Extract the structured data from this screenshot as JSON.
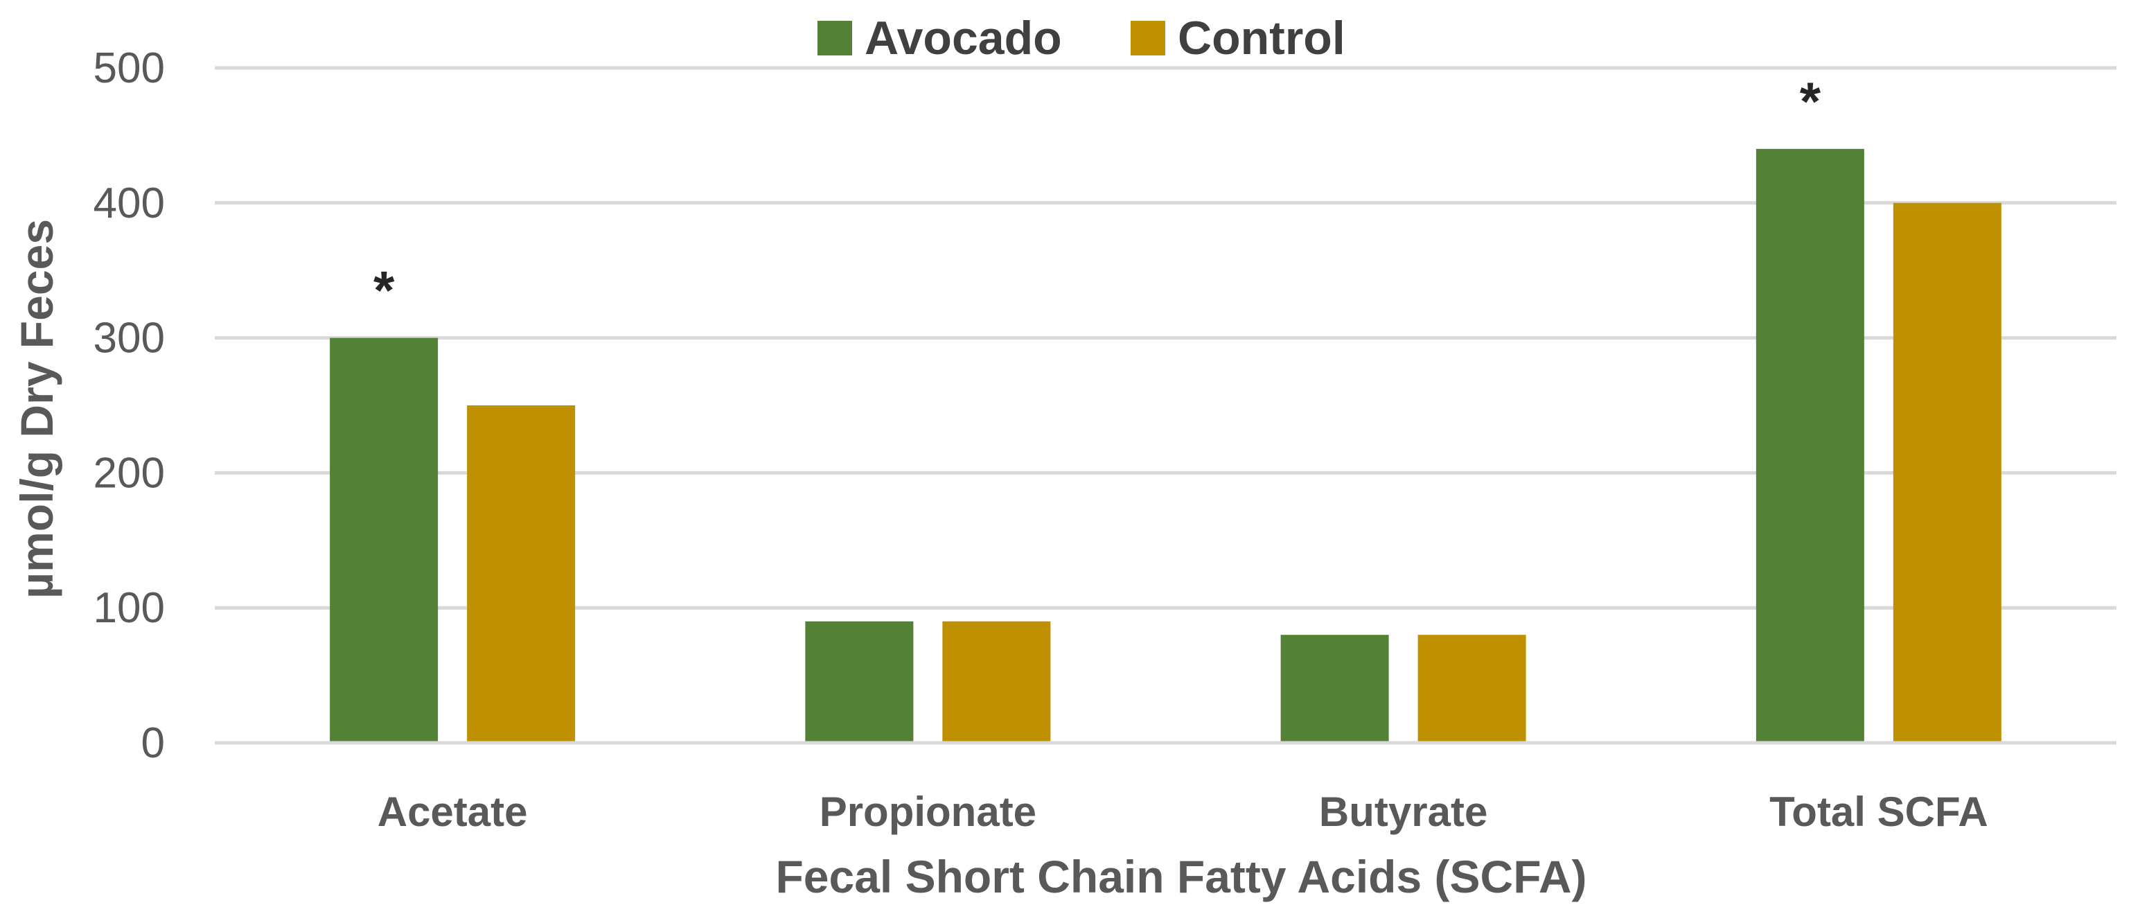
{
  "chart_data": {
    "type": "bar",
    "title": "",
    "xlabel": "Fecal Short Chain Fatty Acids (SCFA)",
    "ylabel": "µmol/g Dry Feces",
    "ylim": [
      0,
      500
    ],
    "yticks": [
      0,
      100,
      200,
      300,
      400,
      500
    ],
    "grid": true,
    "legend_position": "top-center",
    "categories": [
      "Acetate",
      "Propionate",
      "Butyrate",
      "Total SCFA"
    ],
    "series": [
      {
        "name": "Avocado",
        "color": "#538135",
        "values": [
          300,
          90,
          80,
          440
        ]
      },
      {
        "name": "Control",
        "color": "#bf9000",
        "values": [
          250,
          90,
          80,
          400
        ]
      }
    ],
    "annotations": [
      {
        "text": "*",
        "category": "Acetate",
        "series": "Avocado"
      },
      {
        "text": "*",
        "category": "Total SCFA",
        "series": "Avocado"
      }
    ]
  }
}
